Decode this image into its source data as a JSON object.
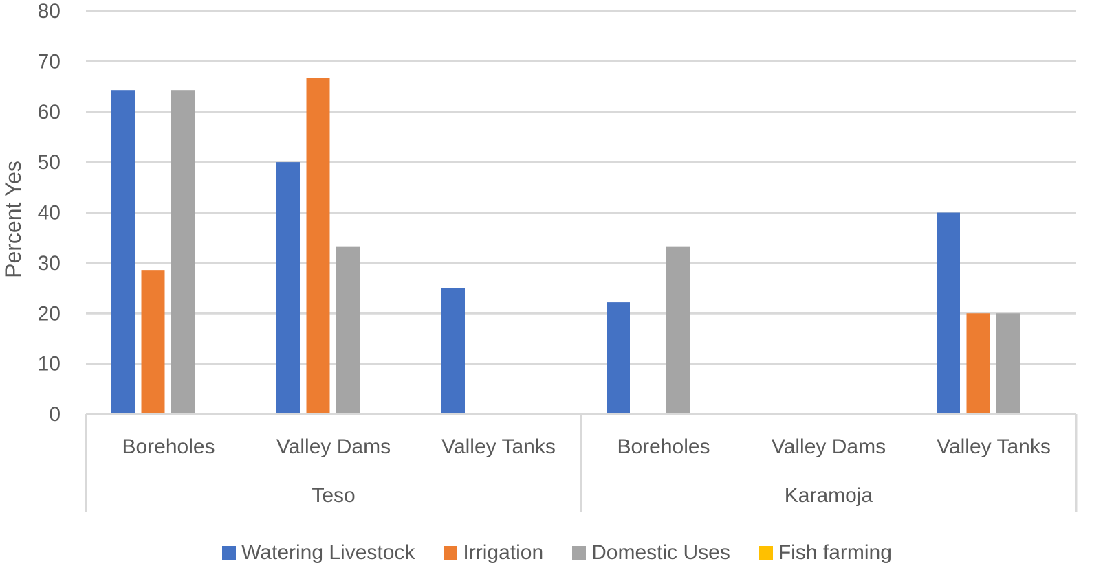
{
  "chart_data": {
    "type": "bar",
    "ylabel": "Percent Yes",
    "ylim": [
      0,
      80
    ],
    "yticks": [
      0,
      10,
      20,
      30,
      40,
      50,
      60,
      70,
      80
    ],
    "grid": true,
    "legend_position": "bottom",
    "groups": [
      {
        "label": "Teso",
        "categories": [
          "Boreholes",
          "Valley Dams",
          "Valley Tanks"
        ]
      },
      {
        "label": "Karamoja",
        "categories": [
          "Boreholes",
          "Valley Dams",
          "Valley Tanks"
        ]
      }
    ],
    "series": [
      {
        "name": "Watering Livestock",
        "color": "#4472C4",
        "values": [
          64.3,
          50,
          25,
          22.2,
          0,
          40
        ]
      },
      {
        "name": "Irrigation",
        "color": "#ED7D31",
        "values": [
          28.6,
          66.7,
          0,
          0,
          0,
          20
        ]
      },
      {
        "name": "Domestic Uses",
        "color": "#A5A5A5",
        "values": [
          64.3,
          33.3,
          0,
          33.3,
          0,
          20
        ]
      },
      {
        "name": "Fish farming",
        "color": "#FFC000",
        "values": [
          0,
          0,
          0,
          0,
          0,
          0
        ]
      }
    ]
  }
}
